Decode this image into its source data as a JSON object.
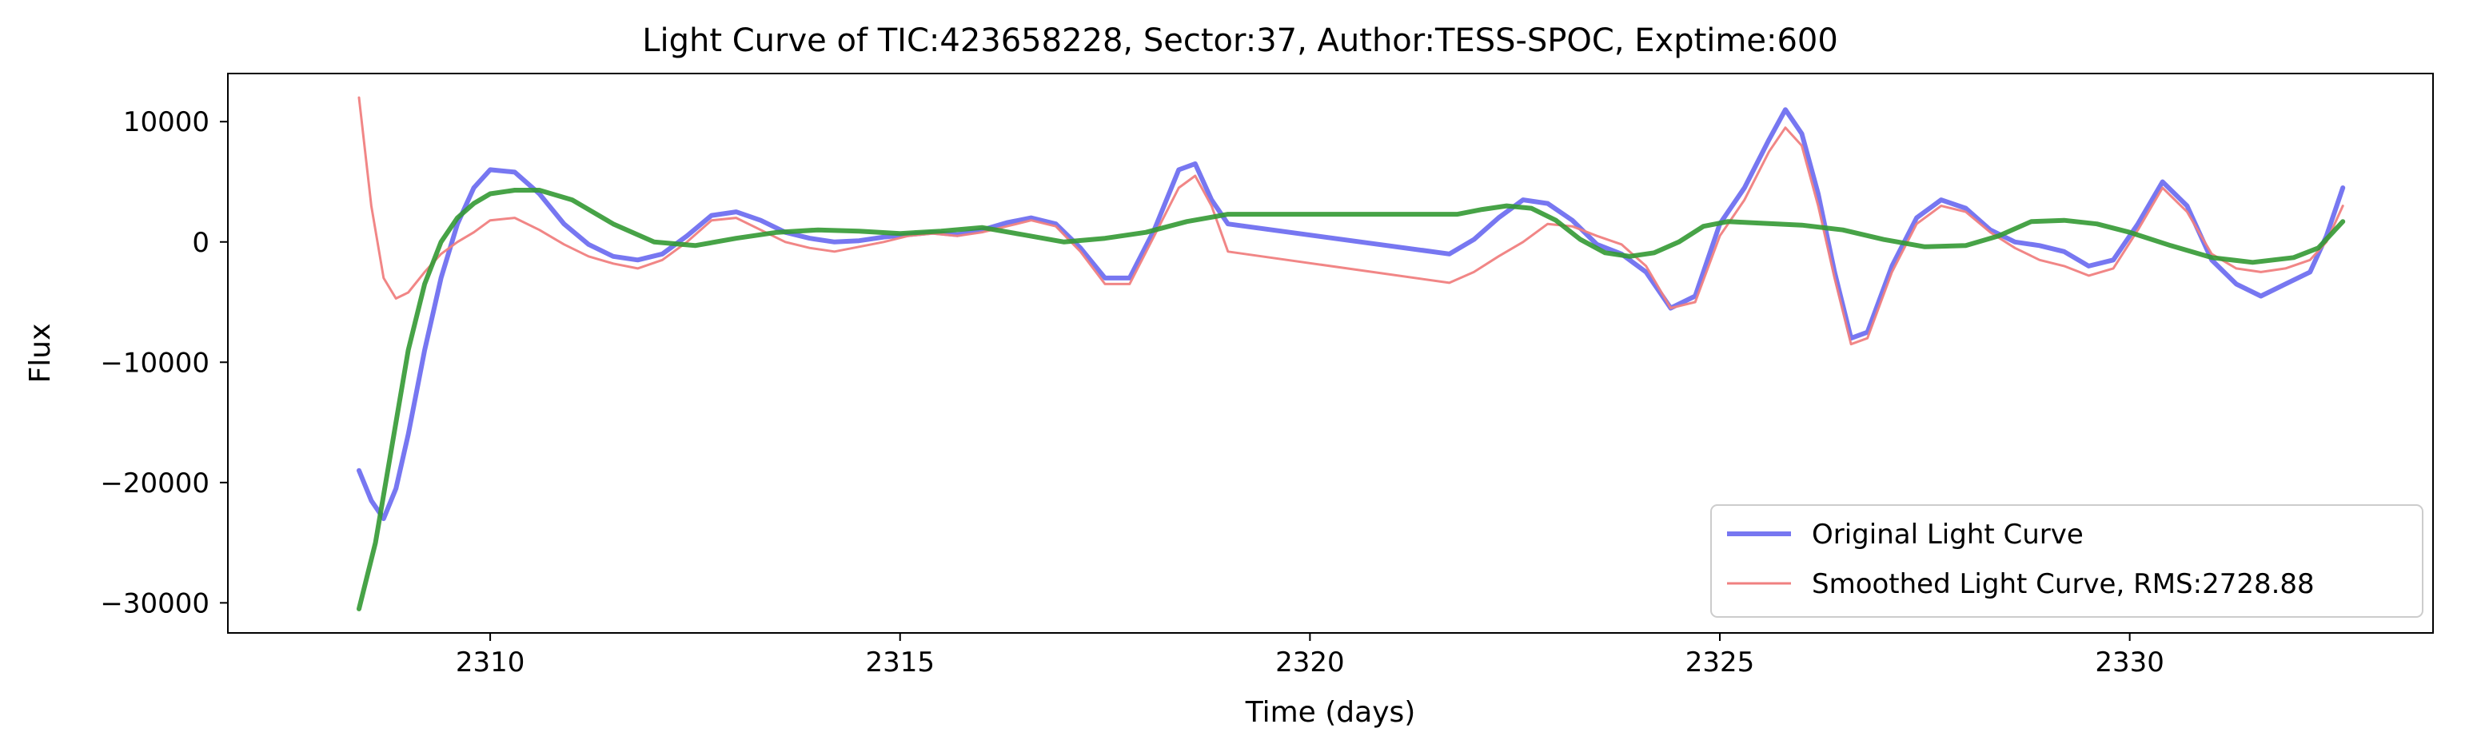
{
  "chart_data": {
    "type": "line",
    "title": "Light Curve of TIC:423658228, Sector:37, Author:TESS-SPOC, Exptime:600",
    "xlabel": "Time (days)",
    "ylabel": "Flux",
    "xlim": [
      2306.8,
      2333.7
    ],
    "ylim": [
      -32500,
      14000
    ],
    "xticks": [
      2310,
      2315,
      2320,
      2325,
      2330
    ],
    "xtick_labels": [
      "2310",
      "2315",
      "2320",
      "2325",
      "2330"
    ],
    "yticks": [
      10000,
      0,
      -10000,
      -20000,
      -30000
    ],
    "ytick_labels": [
      "10000",
      "0",
      "−10000",
      "−20000",
      "−30000"
    ],
    "grid": false,
    "legend_position": "lower-right",
    "series": [
      {
        "name": "Original Light Curve",
        "color": "#5555ee",
        "x": [
          2308.4,
          2308.55,
          2308.7,
          2308.85,
          2309.0,
          2309.2,
          2309.4,
          2309.6,
          2309.8,
          2310.0,
          2310.3,
          2310.6,
          2310.9,
          2311.2,
          2311.5,
          2311.8,
          2312.1,
          2312.4,
          2312.7,
          2313.0,
          2313.3,
          2313.6,
          2313.9,
          2314.2,
          2314.5,
          2314.8,
          2315.1,
          2315.4,
          2315.7,
          2316.0,
          2316.3,
          2316.6,
          2316.9,
          2317.2,
          2317.5,
          2317.8,
          2318.1,
          2318.4,
          2318.6,
          2318.8,
          2319.0,
          2321.7,
          2322.0,
          2322.3,
          2322.6,
          2322.9,
          2323.2,
          2323.5,
          2323.8,
          2324.1,
          2324.4,
          2324.7,
          2325.0,
          2325.3,
          2325.6,
          2325.8,
          2326.0,
          2326.2,
          2326.4,
          2326.6,
          2326.8,
          2327.1,
          2327.4,
          2327.7,
          2328.0,
          2328.3,
          2328.6,
          2328.9,
          2329.2,
          2329.5,
          2329.8,
          2330.1,
          2330.4,
          2330.7,
          2331.0,
          2331.3,
          2331.6,
          2331.9,
          2332.2,
          2332.4,
          2332.6
        ],
        "y": [
          -19000,
          -21500,
          -23000,
          -20500,
          -16000,
          -9000,
          -3000,
          1500,
          4500,
          6000,
          5800,
          4000,
          1500,
          -200,
          -1200,
          -1500,
          -1000,
          500,
          2200,
          2500,
          1800,
          800,
          300,
          0,
          100,
          400,
          600,
          800,
          600,
          1000,
          1600,
          2000,
          1500,
          -500,
          -3000,
          -3000,
          1000,
          6000,
          6500,
          3500,
          1500,
          -1000,
          200,
          2000,
          3500,
          3200,
          1800,
          -200,
          -1000,
          -2500,
          -5500,
          -4500,
          1500,
          4500,
          8500,
          11000,
          9000,
          4000,
          -2500,
          -8000,
          -7500,
          -2000,
          2000,
          3500,
          2800,
          1000,
          0,
          -300,
          -800,
          -2000,
          -1500,
          1500,
          5000,
          3000,
          -1500,
          -3500,
          -4500,
          -3500,
          -2500,
          500,
          4500
        ]
      },
      {
        "name": "Smoothed Light Curve, RMS:2728.88",
        "color": "#f08080",
        "x": [
          2308.4,
          2308.55,
          2308.7,
          2308.85,
          2309.0,
          2309.2,
          2309.4,
          2309.6,
          2309.8,
          2310.0,
          2310.3,
          2310.6,
          2310.9,
          2311.2,
          2311.5,
          2311.8,
          2312.1,
          2312.4,
          2312.7,
          2313.0,
          2313.3,
          2313.6,
          2313.9,
          2314.2,
          2314.5,
          2314.8,
          2315.1,
          2315.4,
          2315.7,
          2316.0,
          2316.3,
          2316.6,
          2316.9,
          2317.2,
          2317.5,
          2317.8,
          2318.1,
          2318.4,
          2318.6,
          2318.8,
          2319.0,
          2321.7,
          2322.0,
          2322.3,
          2322.6,
          2322.9,
          2323.2,
          2323.5,
          2323.8,
          2324.1,
          2324.4,
          2324.7,
          2325.0,
          2325.3,
          2325.6,
          2325.8,
          2326.0,
          2326.2,
          2326.4,
          2326.6,
          2326.8,
          2327.1,
          2327.4,
          2327.7,
          2328.0,
          2328.3,
          2328.6,
          2328.9,
          2329.2,
          2329.5,
          2329.8,
          2330.1,
          2330.4,
          2330.7,
          2331.0,
          2331.3,
          2331.6,
          2331.9,
          2332.2,
          2332.4,
          2332.6
        ],
        "y": [
          12000,
          3000,
          -3000,
          -4700,
          -4200,
          -2500,
          -1000,
          0,
          800,
          1800,
          2000,
          1000,
          -200,
          -1200,
          -1800,
          -2200,
          -1500,
          0,
          1800,
          2000,
          1000,
          0,
          -500,
          -800,
          -400,
          0,
          500,
          700,
          500,
          800,
          1300,
          1800,
          1300,
          -800,
          -3500,
          -3500,
          500,
          4500,
          5500,
          3000,
          -800,
          -3400,
          -2500,
          -1200,
          0,
          1500,
          1300,
          500,
          -200,
          -2000,
          -5500,
          -5000,
          500,
          3500,
          7500,
          9500,
          8000,
          3000,
          -3000,
          -8500,
          -8000,
          -2500,
          1500,
          3000,
          2500,
          800,
          -500,
          -1500,
          -2000,
          -2800,
          -2200,
          1000,
          4500,
          2500,
          -1000,
          -2200,
          -2500,
          -2200,
          -1500,
          0,
          3000
        ]
      },
      {
        "name": "",
        "color": "#339933",
        "x": [
          2308.4,
          2308.6,
          2308.8,
          2309.0,
          2309.2,
          2309.4,
          2309.6,
          2309.8,
          2310.0,
          2310.3,
          2310.6,
          2311.0,
          2311.5,
          2312.0,
          2312.5,
          2313.0,
          2313.5,
          2314.0,
          2314.5,
          2315.0,
          2315.5,
          2316.0,
          2316.5,
          2317.0,
          2317.5,
          2318.0,
          2318.5,
          2319.0,
          2319.5,
          2320.0,
          2320.5,
          2321.0,
          2321.5,
          2321.8,
          2322.1,
          2322.4,
          2322.7,
          2323.0,
          2323.3,
          2323.6,
          2323.9,
          2324.2,
          2324.5,
          2324.8,
          2325.1,
          2325.4,
          2325.7,
          2326.0,
          2326.5,
          2327.0,
          2327.5,
          2328.0,
          2328.4,
          2328.8,
          2329.2,
          2329.6,
          2330.0,
          2330.5,
          2331.0,
          2331.5,
          2332.0,
          2332.3,
          2332.6
        ],
        "y": [
          -30500,
          -25000,
          -17000,
          -9000,
          -3500,
          0,
          2000,
          3200,
          4000,
          4300,
          4300,
          3500,
          1500,
          0,
          -300,
          300,
          800,
          1000,
          900,
          700,
          900,
          1200,
          600,
          0,
          300,
          800,
          1700,
          2300,
          2300,
          2300,
          2300,
          2300,
          2300,
          2300,
          2700,
          3000,
          2800,
          1800,
          200,
          -900,
          -1200,
          -900,
          0,
          1300,
          1700,
          1600,
          1500,
          1400,
          1000,
          200,
          -400,
          -300,
          500,
          1700,
          1800,
          1500,
          800,
          -300,
          -1300,
          -1700,
          -1300,
          -500,
          1700
        ]
      }
    ]
  }
}
